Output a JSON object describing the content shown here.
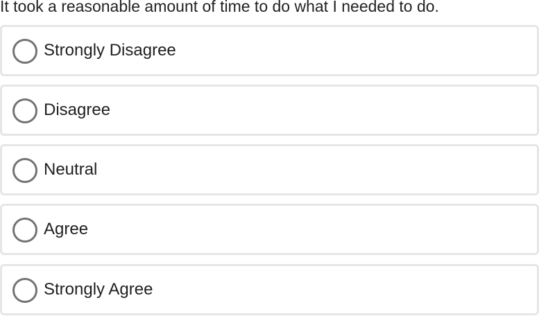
{
  "question": "It took a reasonable amount of time to do what I needed to do.",
  "options": [
    {
      "label": "Strongly Disagree",
      "selected": false
    },
    {
      "label": "Disagree",
      "selected": false
    },
    {
      "label": "Neutral",
      "selected": false
    },
    {
      "label": "Agree",
      "selected": false
    },
    {
      "label": "Strongly Agree",
      "selected": false
    }
  ],
  "colors": {
    "border": "#e6e6e6",
    "radio": "#737373",
    "text": "#1f1f1f"
  }
}
